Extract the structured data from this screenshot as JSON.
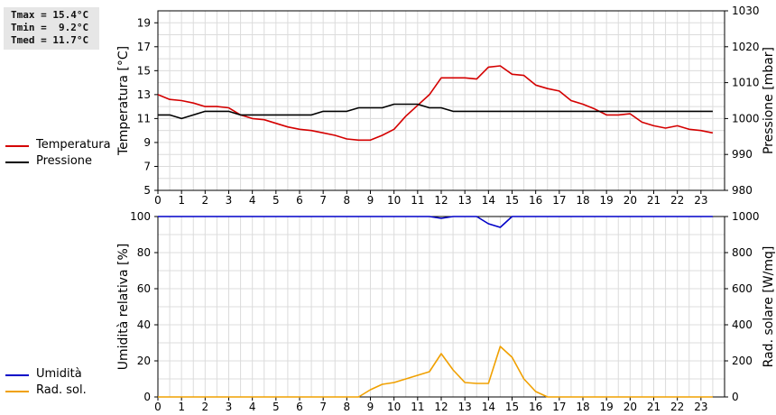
{
  "stats": {
    "tmax": "Tmax = 15.4°C",
    "tmin": "Tmin =  9.2°C",
    "tmed": "Tmed = 11.7°C"
  },
  "chart_data": [
    {
      "type": "line",
      "xlim": [
        0,
        24
      ],
      "xticks": [
        "0",
        "1",
        "2",
        "3",
        "4",
        "5",
        "6",
        "7",
        "8",
        "9",
        "10",
        "11",
        "12",
        "13",
        "14",
        "15",
        "16",
        "17",
        "18",
        "19",
        "20",
        "21",
        "22",
        "23"
      ],
      "ylabel": "Temperatura [°C]",
      "ylim": [
        5,
        20
      ],
      "yticks": [
        "5",
        "7",
        "9",
        "11",
        "13",
        "15",
        "17",
        "19"
      ],
      "y2label": "Pressione [mbar]",
      "y2lim": [
        980,
        1030
      ],
      "y2ticks": [
        "980",
        "990",
        "1000",
        "1010",
        "1020",
        "1030"
      ],
      "grid": true,
      "legend_position": "left",
      "series": [
        {
          "name": "Temperatura",
          "color": "#d40000",
          "axis": "left",
          "x": [
            0,
            0.5,
            1,
            1.5,
            2,
            2.5,
            3,
            3.5,
            4,
            4.5,
            5,
            5.5,
            6,
            6.5,
            7,
            7.5,
            8,
            8.5,
            9,
            9.5,
            10,
            10.5,
            11,
            11.5,
            12,
            12.5,
            13,
            13.5,
            14,
            14.5,
            15,
            15.5,
            16,
            16.5,
            17,
            17.5,
            18,
            18.5,
            19,
            19.5,
            20,
            20.5,
            21,
            21.5,
            22,
            22.5,
            23,
            23.5
          ],
          "values": [
            13.0,
            12.6,
            12.5,
            12.3,
            12.0,
            12.0,
            11.9,
            11.3,
            11.0,
            10.9,
            10.6,
            10.3,
            10.1,
            10.0,
            9.8,
            9.6,
            9.3,
            9.2,
            9.2,
            9.6,
            10.1,
            11.2,
            12.1,
            13.0,
            14.4,
            14.4,
            14.4,
            14.3,
            15.3,
            15.4,
            14.7,
            14.6,
            13.8,
            13.5,
            13.3,
            12.5,
            12.2,
            11.8,
            11.3,
            11.3,
            11.4,
            10.7,
            10.4,
            10.2,
            10.4,
            10.1,
            10.0,
            9.8
          ]
        },
        {
          "name": "Pressione",
          "color": "#000000",
          "axis": "right",
          "x": [
            0,
            0.5,
            1,
            1.5,
            2,
            2.5,
            3,
            3.5,
            4,
            4.5,
            5,
            5.5,
            6,
            6.5,
            7,
            7.5,
            8,
            8.5,
            9,
            9.5,
            10,
            10.5,
            11,
            11.5,
            12,
            12.5,
            13,
            13.5,
            14,
            14.5,
            15,
            15.5,
            16,
            16.5,
            17,
            17.5,
            18,
            18.5,
            19,
            19.5,
            20,
            20.5,
            21,
            21.5,
            22,
            22.5,
            23,
            23.5
          ],
          "values": [
            1001,
            1001,
            1000,
            1001,
            1002,
            1002,
            1002,
            1001,
            1001,
            1001,
            1001,
            1001,
            1001,
            1001,
            1002,
            1002,
            1002,
            1003,
            1003,
            1003,
            1004,
            1004,
            1004,
            1003,
            1003,
            1002,
            1002,
            1002,
            1002,
            1002,
            1002,
            1002,
            1002,
            1002,
            1002,
            1002,
            1002,
            1002,
            1002,
            1002,
            1002,
            1002,
            1002,
            1002,
            1002,
            1002,
            1002,
            1002
          ]
        }
      ]
    },
    {
      "type": "line",
      "xlim": [
        0,
        24
      ],
      "xticks": [
        "0",
        "1",
        "2",
        "3",
        "4",
        "5",
        "6",
        "7",
        "8",
        "9",
        "10",
        "11",
        "12",
        "13",
        "14",
        "15",
        "16",
        "17",
        "18",
        "19",
        "20",
        "21",
        "22",
        "23"
      ],
      "ylabel": "Umidità relativa [%]",
      "ylim": [
        0,
        100
      ],
      "yticks": [
        "0",
        "20",
        "40",
        "60",
        "80",
        "100"
      ],
      "y2label": "Rad. solare [W/mq]",
      "y2lim": [
        0,
        1000
      ],
      "y2ticks": [
        "0",
        "200",
        "400",
        "600",
        "800",
        "1000"
      ],
      "grid": true,
      "legend_position": "left",
      "series": [
        {
          "name": "Umidità",
          "color": "#0000c8",
          "axis": "left",
          "x": [
            0,
            11,
            11.5,
            12,
            12.5,
            13,
            13.5,
            14,
            14.5,
            15,
            15.5,
            23.5
          ],
          "values": [
            100,
            100,
            100,
            99,
            100,
            100,
            100,
            96,
            94,
            100,
            100,
            100
          ]
        },
        {
          "name": "Rad. sol.",
          "color": "#f0a000",
          "axis": "right",
          "x": [
            0,
            8.5,
            9,
            9.5,
            10,
            10.5,
            11,
            11.5,
            12,
            12.5,
            13,
            13.5,
            14,
            14.5,
            15,
            15.5,
            16,
            16.5,
            23.5
          ],
          "values": [
            0,
            0,
            40,
            70,
            80,
            100,
            120,
            140,
            240,
            150,
            80,
            75,
            75,
            280,
            220,
            100,
            30,
            0,
            0
          ]
        }
      ]
    }
  ]
}
